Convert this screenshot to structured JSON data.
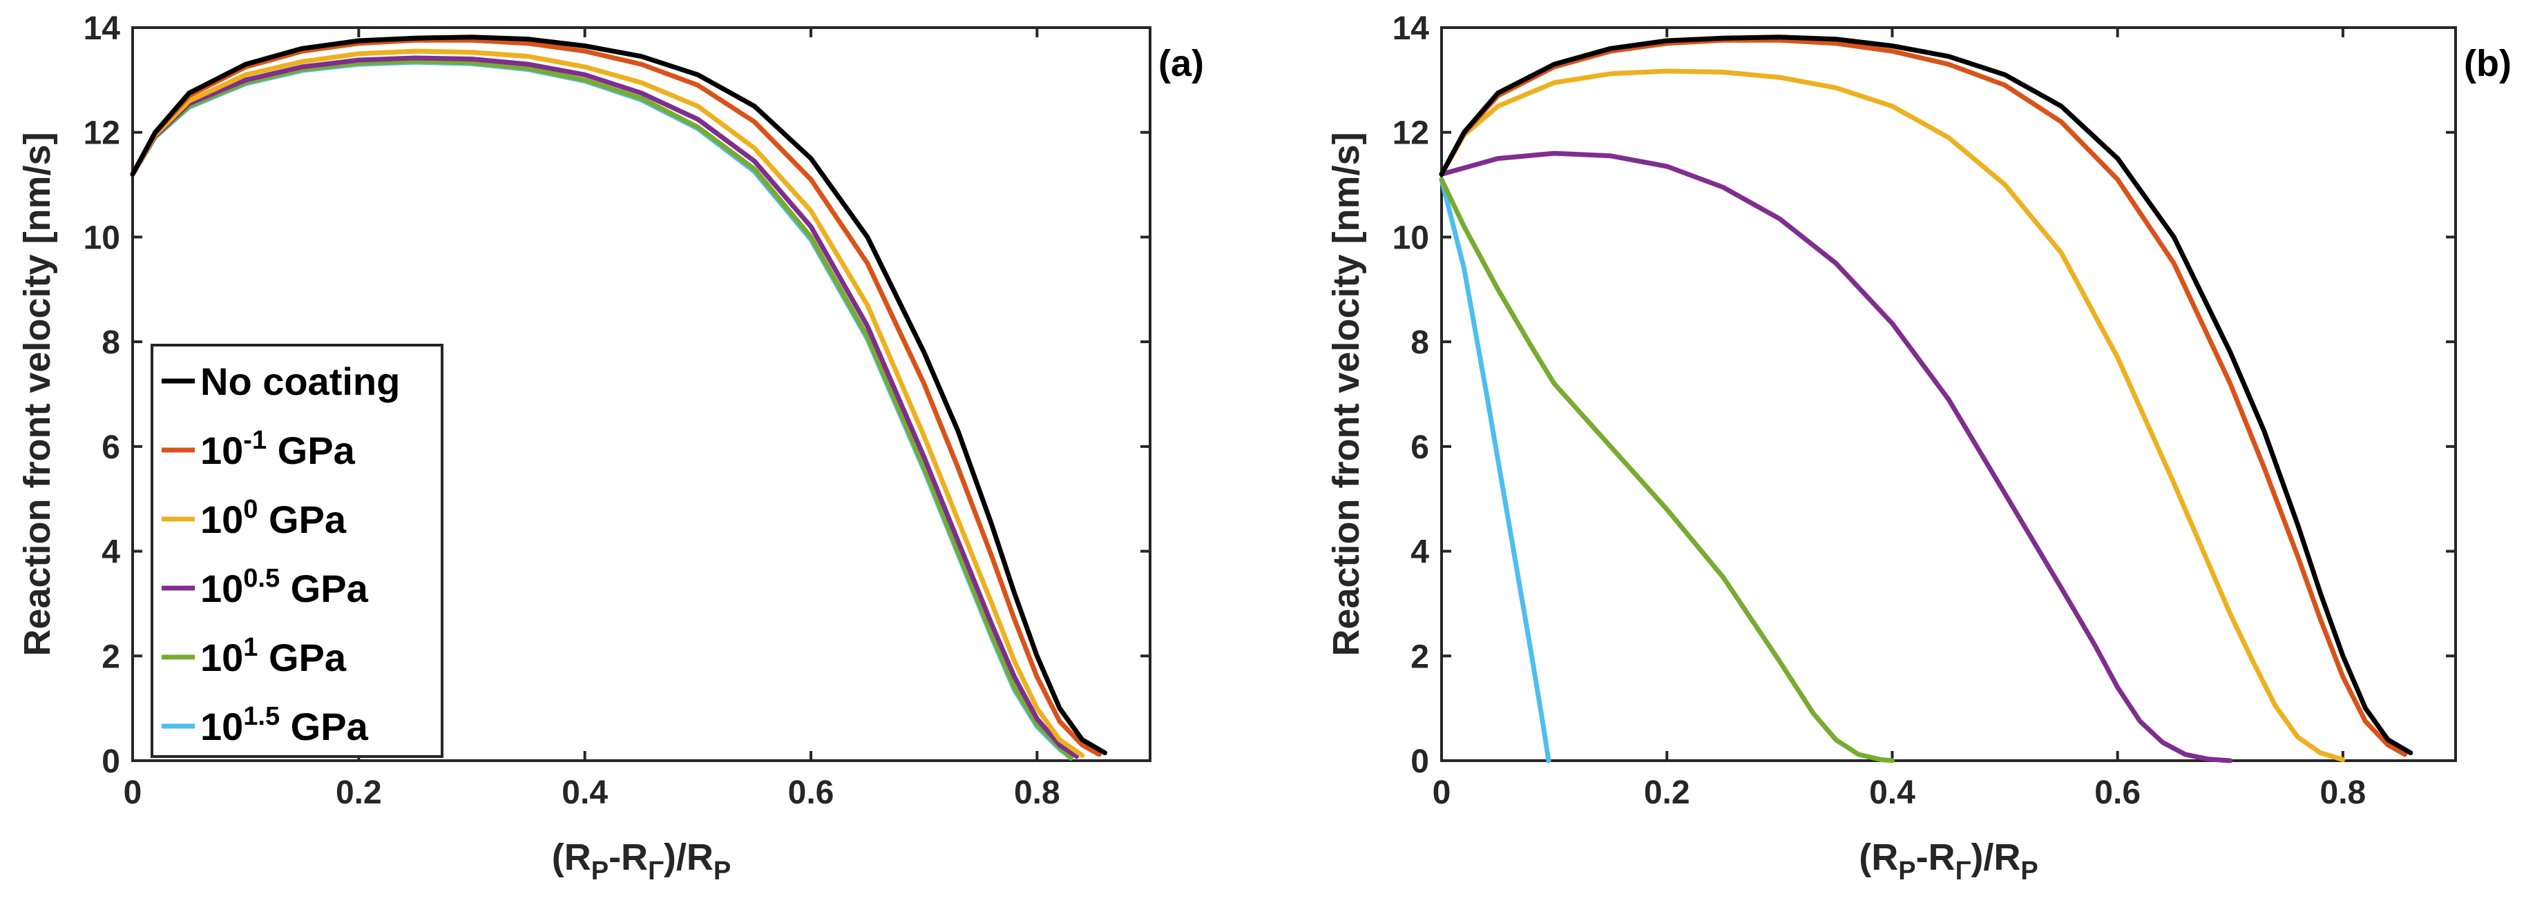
{
  "chart_data": [
    {
      "type": "line",
      "panel_label": "(a)",
      "xlabel": "(R_P-R_Γ)/R_P",
      "ylabel": "Reaction front velocity [nm/s]",
      "xlim": [
        0,
        0.9
      ],
      "ylim": [
        0,
        14
      ],
      "xticks": [
        0,
        0.2,
        0.4,
        0.6,
        0.8
      ],
      "xtick_labels": [
        "0",
        "0.2",
        "0.4",
        "0.6",
        "0.8"
      ],
      "yticks": [
        0,
        2,
        4,
        6,
        8,
        10,
        12,
        14
      ],
      "ytick_labels": [
        "0",
        "2",
        "4",
        "6",
        "8",
        "10",
        "12",
        "14"
      ],
      "legend": true,
      "legend_position": "bottom-left",
      "series": [
        {
          "name": "No coating",
          "label_base": "No coating",
          "label_exp": "",
          "label_unit": "",
          "color": "#000000",
          "x": [
            0,
            0.02,
            0.05,
            0.1,
            0.15,
            0.2,
            0.25,
            0.3,
            0.35,
            0.4,
            0.45,
            0.5,
            0.55,
            0.6,
            0.65,
            0.7,
            0.73,
            0.76,
            0.78,
            0.8,
            0.82,
            0.84,
            0.86
          ],
          "y": [
            11.2,
            12.0,
            12.75,
            13.3,
            13.6,
            13.75,
            13.8,
            13.82,
            13.78,
            13.65,
            13.45,
            13.1,
            12.5,
            11.5,
            10.0,
            7.8,
            6.3,
            4.5,
            3.2,
            2.0,
            1.0,
            0.4,
            0.15
          ]
        },
        {
          "name": "10^-1 GPa",
          "label_base": "10",
          "label_exp": "-1",
          "label_unit": " GPa",
          "color": "#D95319",
          "x": [
            0,
            0.02,
            0.05,
            0.1,
            0.15,
            0.2,
            0.25,
            0.3,
            0.35,
            0.4,
            0.45,
            0.5,
            0.55,
            0.6,
            0.65,
            0.7,
            0.73,
            0.76,
            0.78,
            0.8,
            0.82,
            0.84,
            0.855
          ],
          "y": [
            11.2,
            11.98,
            12.7,
            13.25,
            13.55,
            13.7,
            13.76,
            13.76,
            13.7,
            13.55,
            13.3,
            12.9,
            12.2,
            11.1,
            9.5,
            7.2,
            5.6,
            3.9,
            2.7,
            1.6,
            0.75,
            0.3,
            0.12
          ]
        },
        {
          "name": "10^0 GPa",
          "label_base": "10",
          "label_exp": "0",
          "label_unit": " GPa",
          "color": "#EDB120",
          "x": [
            0,
            0.02,
            0.05,
            0.1,
            0.15,
            0.2,
            0.25,
            0.3,
            0.35,
            0.4,
            0.45,
            0.5,
            0.55,
            0.6,
            0.65,
            0.7,
            0.73,
            0.76,
            0.78,
            0.8,
            0.82,
            0.84
          ],
          "y": [
            11.2,
            11.95,
            12.6,
            13.1,
            13.35,
            13.5,
            13.55,
            13.53,
            13.45,
            13.25,
            12.95,
            12.5,
            11.7,
            10.5,
            8.7,
            6.2,
            4.6,
            3.0,
            1.9,
            1.0,
            0.4,
            0.1
          ]
        },
        {
          "name": "10^0.5 GPa",
          "label_base": "10",
          "label_exp": "0.5",
          "label_unit": " GPa",
          "color": "#7E2F8E",
          "x": [
            0,
            0.02,
            0.05,
            0.1,
            0.15,
            0.2,
            0.25,
            0.3,
            0.35,
            0.4,
            0.45,
            0.5,
            0.55,
            0.6,
            0.65,
            0.7,
            0.73,
            0.76,
            0.78,
            0.8,
            0.82,
            0.835
          ],
          "y": [
            11.2,
            11.93,
            12.55,
            13.0,
            13.25,
            13.38,
            13.42,
            13.4,
            13.3,
            13.1,
            12.75,
            12.25,
            11.45,
            10.2,
            8.3,
            5.8,
            4.2,
            2.6,
            1.6,
            0.8,
            0.3,
            0.08
          ]
        },
        {
          "name": "10^1 GPa",
          "label_base": "10",
          "label_exp": "1",
          "label_unit": " GPa",
          "color": "#77AC30",
          "x": [
            0,
            0.02,
            0.05,
            0.1,
            0.15,
            0.2,
            0.25,
            0.3,
            0.35,
            0.4,
            0.45,
            0.5,
            0.55,
            0.6,
            0.65,
            0.7,
            0.73,
            0.76,
            0.78,
            0.8,
            0.82,
            0.83
          ],
          "y": [
            11.2,
            11.92,
            12.5,
            12.95,
            13.2,
            13.32,
            13.36,
            13.33,
            13.22,
            13.0,
            12.65,
            12.1,
            11.3,
            10.0,
            8.1,
            5.6,
            4.0,
            2.4,
            1.4,
            0.7,
            0.25,
            0.06
          ]
        },
        {
          "name": "10^1.5 GPa",
          "label_base": "10",
          "label_exp": "1.5",
          "label_unit": " GPa",
          "color": "#4DBEEE",
          "x": [
            0,
            0.02,
            0.05,
            0.1,
            0.15,
            0.2,
            0.25,
            0.3,
            0.35,
            0.4,
            0.45,
            0.5,
            0.55,
            0.6,
            0.65,
            0.7,
            0.73,
            0.76,
            0.78,
            0.8,
            0.82,
            0.83
          ],
          "y": [
            11.2,
            11.91,
            12.48,
            12.93,
            13.18,
            13.3,
            13.34,
            13.31,
            13.2,
            12.98,
            12.62,
            12.07,
            11.25,
            9.95,
            8.05,
            5.55,
            3.95,
            2.35,
            1.35,
            0.65,
            0.22,
            0.05
          ]
        }
      ]
    },
    {
      "type": "line",
      "panel_label": "(b)",
      "xlabel": "(R_P-R_Γ)/R_P",
      "ylabel": "Reaction front velocity [nm/s]",
      "xlim": [
        0,
        0.9
      ],
      "ylim": [
        0,
        14
      ],
      "xticks": [
        0,
        0.2,
        0.4,
        0.6,
        0.8
      ],
      "xtick_labels": [
        "0",
        "0.2",
        "0.4",
        "0.6",
        "0.8"
      ],
      "yticks": [
        0,
        2,
        4,
        6,
        8,
        10,
        12,
        14
      ],
      "ytick_labels": [
        "0",
        "2",
        "4",
        "6",
        "8",
        "10",
        "12",
        "14"
      ],
      "legend": false,
      "series": [
        {
          "name": "No coating",
          "color": "#000000",
          "x": [
            0,
            0.02,
            0.05,
            0.1,
            0.15,
            0.2,
            0.25,
            0.3,
            0.35,
            0.4,
            0.45,
            0.5,
            0.55,
            0.6,
            0.65,
            0.7,
            0.73,
            0.76,
            0.78,
            0.8,
            0.82,
            0.84,
            0.86
          ],
          "y": [
            11.2,
            12.0,
            12.75,
            13.3,
            13.6,
            13.75,
            13.8,
            13.82,
            13.78,
            13.65,
            13.45,
            13.1,
            12.5,
            11.5,
            10.0,
            7.8,
            6.3,
            4.5,
            3.2,
            2.0,
            1.0,
            0.4,
            0.15
          ]
        },
        {
          "name": "10^-1 GPa",
          "color": "#D95319",
          "x": [
            0,
            0.02,
            0.05,
            0.1,
            0.15,
            0.2,
            0.25,
            0.3,
            0.35,
            0.4,
            0.45,
            0.5,
            0.55,
            0.6,
            0.65,
            0.7,
            0.73,
            0.76,
            0.78,
            0.8,
            0.82,
            0.84,
            0.855
          ],
          "y": [
            11.2,
            11.98,
            12.7,
            13.25,
            13.55,
            13.7,
            13.76,
            13.76,
            13.7,
            13.55,
            13.3,
            12.9,
            12.2,
            11.1,
            9.5,
            7.2,
            5.6,
            3.9,
            2.7,
            1.6,
            0.75,
            0.3,
            0.12
          ]
        },
        {
          "name": "10^0 GPa",
          "color": "#EDB120",
          "x": [
            0,
            0.02,
            0.05,
            0.1,
            0.15,
            0.2,
            0.25,
            0.3,
            0.35,
            0.4,
            0.45,
            0.5,
            0.55,
            0.6,
            0.65,
            0.68,
            0.7,
            0.72,
            0.74,
            0.76,
            0.78,
            0.8
          ],
          "y": [
            11.2,
            11.95,
            12.5,
            12.95,
            13.12,
            13.17,
            13.15,
            13.05,
            12.85,
            12.5,
            11.9,
            11.0,
            9.7,
            7.7,
            5.3,
            3.8,
            2.8,
            1.9,
            1.05,
            0.45,
            0.15,
            0.02
          ]
        },
        {
          "name": "10^0.5 GPa",
          "color": "#7E2F8E",
          "x": [
            0,
            0.05,
            0.1,
            0.15,
            0.2,
            0.25,
            0.3,
            0.35,
            0.4,
            0.45,
            0.5,
            0.55,
            0.58,
            0.6,
            0.62,
            0.64,
            0.66,
            0.68,
            0.7
          ],
          "y": [
            11.2,
            11.5,
            11.6,
            11.55,
            11.35,
            10.95,
            10.35,
            9.5,
            8.35,
            6.9,
            5.1,
            3.3,
            2.2,
            1.4,
            0.75,
            0.35,
            0.12,
            0.03,
            0.0
          ]
        },
        {
          "name": "10^1 GPa",
          "color": "#77AC30",
          "x": [
            0,
            0.02,
            0.05,
            0.08,
            0.1,
            0.15,
            0.2,
            0.25,
            0.3,
            0.33,
            0.35,
            0.37,
            0.39,
            0.4
          ],
          "y": [
            11.1,
            10.2,
            9.0,
            7.9,
            7.2,
            6.0,
            4.8,
            3.5,
            1.9,
            0.9,
            0.4,
            0.12,
            0.02,
            0.0
          ]
        },
        {
          "name": "10^1.5 GPa",
          "color": "#4DBEEE",
          "x": [
            0,
            0.02,
            0.04,
            0.06,
            0.08,
            0.09,
            0.095
          ],
          "y": [
            11.1,
            9.4,
            7.0,
            4.5,
            2.0,
            0.7,
            0.0
          ]
        }
      ]
    }
  ]
}
